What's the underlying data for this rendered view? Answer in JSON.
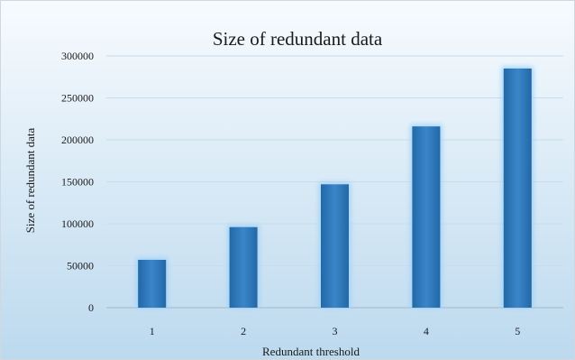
{
  "chart_data": {
    "type": "bar",
    "title": "Size of redundant data",
    "xlabel": "Redundant threshold",
    "ylabel": "Size of redundant data",
    "categories": [
      "1",
      "2",
      "3",
      "4",
      "5"
    ],
    "values": [
      57000,
      96000,
      147000,
      216000,
      285000
    ],
    "ylim": [
      0,
      300000
    ],
    "yticks": [
      "0",
      "50000",
      "100000",
      "150000",
      "200000",
      "250000",
      "300000"
    ],
    "grid": true,
    "legend": "none",
    "colors": {
      "bar": "#3a86c8",
      "bar_dark": "#2368a8",
      "bar_glow": "#9ed2f8",
      "background_top": "#f7fbfe",
      "background_bottom": "#bcd9ee",
      "gridline": "#c8dced"
    }
  }
}
